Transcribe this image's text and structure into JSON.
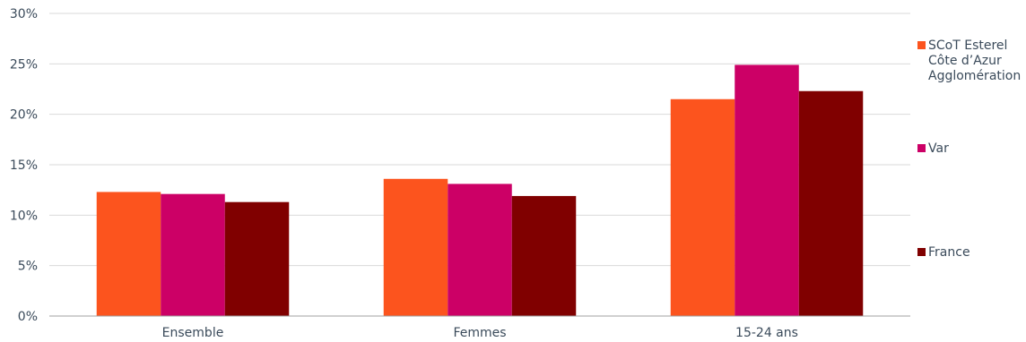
{
  "chart_data": {
    "type": "bar",
    "title": "",
    "xlabel": "",
    "ylabel": "",
    "categories": [
      "Ensemble",
      "Femmes",
      "15-24 ans"
    ],
    "series": [
      {
        "name": "SCoT Esterel Côte d’Azur Agglomération",
        "legend_lines": [
          "SCoT Esterel",
          "Côte d’Azur",
          "Agglomération"
        ],
        "color": "#fc541e",
        "values": [
          12.3,
          13.6,
          21.5
        ]
      },
      {
        "name": "Var",
        "legend_lines": [
          "Var"
        ],
        "color": "#cc0066",
        "values": [
          12.1,
          13.1,
          24.9
        ]
      },
      {
        "name": "France",
        "legend_lines": [
          "France"
        ],
        "color": "#800000",
        "values": [
          11.3,
          11.9,
          22.3
        ]
      }
    ],
    "ylim": [
      0,
      30
    ],
    "yticks": [
      0,
      5,
      10,
      15,
      20,
      25,
      30
    ],
    "ytick_format": "{v}%",
    "grid": true,
    "legend_position": "right"
  }
}
